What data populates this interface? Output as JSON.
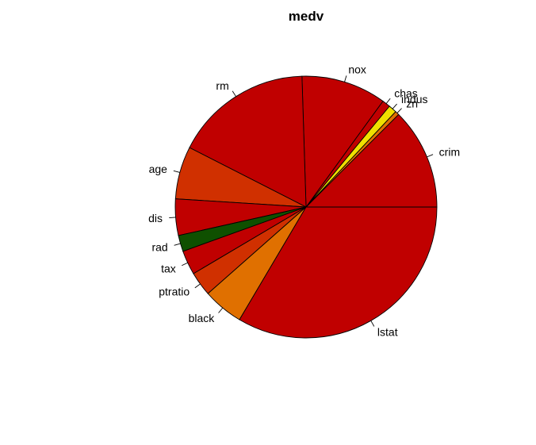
{
  "chart_data": {
    "type": "pie",
    "title": "medv",
    "start_angle_deg": 0,
    "direction": "counterclockwise",
    "slices": [
      {
        "label": "crim",
        "value": 12.5,
        "color": "#c00000"
      },
      {
        "label": "zn",
        "value": 0.5,
        "color": "#e07000"
      },
      {
        "label": "indus",
        "value": 1.0,
        "color": "#f0e000"
      },
      {
        "label": "chas",
        "value": 1.0,
        "color": "#c00000"
      },
      {
        "label": "nox",
        "value": 10.5,
        "color": "#c00000"
      },
      {
        "label": "rm",
        "value": 17.0,
        "color": "#c00000"
      },
      {
        "label": "age",
        "value": 6.5,
        "color": "#d03000"
      },
      {
        "label": "dis",
        "value": 4.5,
        "color": "#c00000"
      },
      {
        "label": "rad",
        "value": 2.0,
        "color": "#0f5000"
      },
      {
        "label": "tax",
        "value": 3.0,
        "color": "#c00000"
      },
      {
        "label": "ptratio",
        "value": 3.0,
        "color": "#d03000"
      },
      {
        "label": "black",
        "value": 5.0,
        "color": "#e07000"
      },
      {
        "label": "lstat",
        "value": 33.5,
        "color": "#c00000"
      }
    ]
  }
}
